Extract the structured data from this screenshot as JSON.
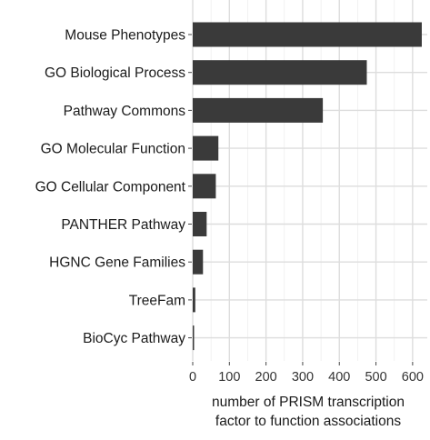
{
  "chart_data": {
    "type": "bar",
    "orientation": "horizontal",
    "categories": [
      "Mouse Phenotypes",
      "GO Biological Process",
      "Pathway Commons",
      "GO Molecular Function",
      "GO Cellular Component",
      "PANTHER Pathway",
      "HGNC Gene Families",
      "TreeFam",
      "BioCyc Pathway"
    ],
    "values": [
      625,
      475,
      355,
      70,
      63,
      38,
      28,
      7,
      2
    ],
    "xlabel": "number of PRISM transcription factor to function associations",
    "xlabel_lines": [
      "number of PRISM transcription",
      "factor to function associations"
    ],
    "xticks": [
      0,
      100,
      200,
      300,
      400,
      500,
      600
    ],
    "xlim": [
      0,
      640
    ],
    "grid": true,
    "bar_color": "#3a3a3a"
  }
}
